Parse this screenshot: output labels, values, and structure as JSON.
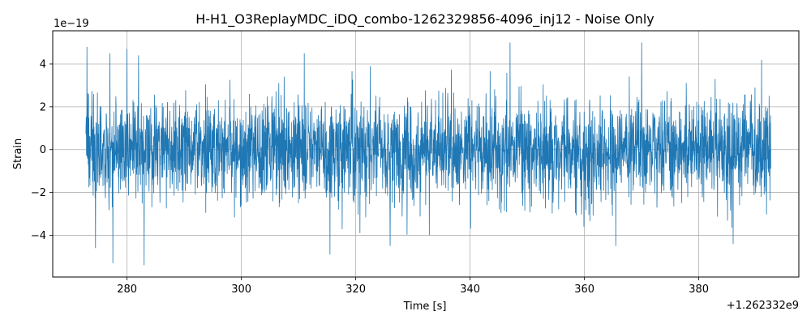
{
  "chart_data": {
    "type": "line",
    "title": "H-H1_O3ReplayMDC_iDQ_combo-1262329856-4096_inj12 - Noise Only",
    "xlabel": "Time [s]",
    "ylabel": "Strain",
    "x_offset_label": "+1.262332e9",
    "y_scale_label": "1e−19",
    "xlim": [
      267.0,
      397.5
    ],
    "ylim": [
      -5.95,
      5.55
    ],
    "xticks": [
      280,
      300,
      320,
      340,
      360,
      380
    ],
    "xtick_labels": [
      "280",
      "300",
      "320",
      "340",
      "360",
      "380"
    ],
    "yticks": [
      -4,
      -2,
      0,
      2,
      4
    ],
    "ytick_labels": [
      "−4",
      "−2",
      "0",
      "2",
      "4"
    ],
    "grid": true,
    "legend": "none",
    "series": [
      {
        "color": "#1f77b4",
        "x_start": 272.8,
        "x_end": 392.6,
        "envelope_y_range": [
          -5.4,
          5.0
        ],
        "peaks": [
          {
            "x": 273.0,
            "y": 4.8
          },
          {
            "x": 277.0,
            "y": 4.5
          },
          {
            "x": 280.0,
            "y": 4.7
          },
          {
            "x": 282.0,
            "y": 4.4
          },
          {
            "x": 311.0,
            "y": 4.5
          },
          {
            "x": 347.0,
            "y": 5.0
          },
          {
            "x": 370.0,
            "y": 5.0
          },
          {
            "x": 391.0,
            "y": 4.2
          }
        ],
        "troughs": [
          {
            "x": 274.5,
            "y": -4.6
          },
          {
            "x": 277.5,
            "y": -5.3
          },
          {
            "x": 283.0,
            "y": -5.4
          },
          {
            "x": 315.5,
            "y": -4.9
          },
          {
            "x": 326.0,
            "y": -4.5
          },
          {
            "x": 365.5,
            "y": -4.5
          },
          {
            "x": 386.0,
            "y": -4.4
          }
        ]
      }
    ]
  }
}
